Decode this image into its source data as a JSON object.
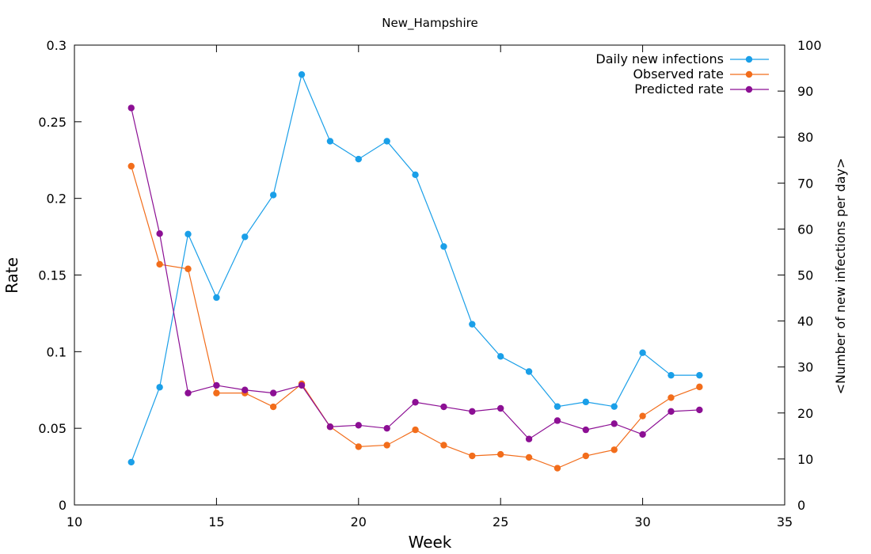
{
  "chart_data": {
    "type": "line",
    "title": "New_Hampshire",
    "xlabel": "Week",
    "ylabel": "Rate",
    "y2label": "<Number of new infections per day>",
    "xlim": [
      10,
      35
    ],
    "ylim": [
      0,
      0.3
    ],
    "y2lim": [
      0,
      100
    ],
    "xticks": [
      "10",
      "15",
      "20",
      "25",
      "30",
      "35"
    ],
    "yticks": [
      "0",
      "0.05",
      "0.1",
      "0.15",
      "0.2",
      "0.25",
      "0.3"
    ],
    "y2ticks": [
      "0",
      "10",
      "20",
      "30",
      "40",
      "50",
      "60",
      "70",
      "80",
      "90",
      "100"
    ],
    "grid": false,
    "legend_position": "top-right",
    "x": [
      12,
      13,
      14,
      15,
      16,
      17,
      18,
      19,
      20,
      21,
      22,
      23,
      24,
      25,
      26,
      27,
      28,
      29,
      30,
      31,
      32
    ],
    "series": [
      {
        "name": "Daily new infections",
        "axis": "y2",
        "color": "#1a9fe8",
        "values": [
          9.3,
          25.6,
          58.9,
          45.1,
          58.3,
          67.4,
          93.6,
          79.1,
          75.2,
          79.1,
          71.8,
          56.2,
          39.3,
          32.3,
          29.0,
          21.4,
          22.4,
          21.4,
          33.1,
          28.2,
          28.2
        ]
      },
      {
        "name": "Observed rate",
        "axis": "y",
        "color": "#f26d1b",
        "values": [
          0.221,
          0.157,
          0.154,
          0.073,
          0.073,
          0.064,
          0.079,
          0.051,
          0.038,
          0.039,
          0.049,
          0.039,
          0.032,
          0.033,
          0.031,
          0.024,
          0.032,
          0.036,
          0.058,
          0.07,
          0.077
        ]
      },
      {
        "name": "Predicted rate",
        "axis": "y",
        "color": "#8c0f94",
        "values": [
          0.259,
          0.177,
          0.073,
          0.078,
          0.075,
          0.073,
          0.078,
          0.051,
          0.052,
          0.05,
          0.067,
          0.064,
          0.061,
          0.063,
          0.043,
          0.055,
          0.049,
          0.053,
          0.046,
          0.061,
          0.062
        ]
      }
    ]
  }
}
